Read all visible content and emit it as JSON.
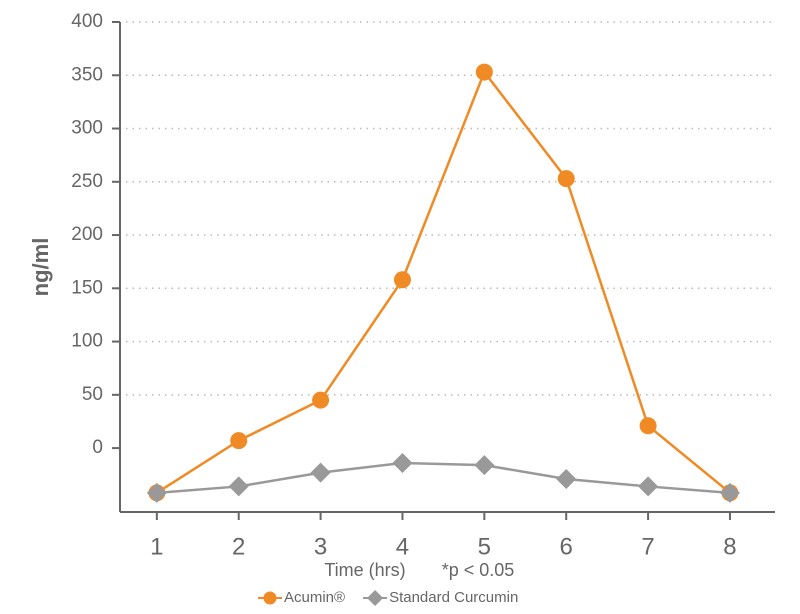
{
  "chart_data": {
    "type": "line",
    "x_label": "Time (hrs)",
    "y_label": "ng/ml",
    "annotation": "*p < 0.05",
    "x": [
      1,
      2,
      3,
      4,
      5,
      6,
      7,
      8
    ],
    "xlim": [
      0.55,
      8.55
    ],
    "xticks": [
      1,
      2,
      3,
      4,
      5,
      6,
      7,
      8
    ],
    "ylim": [
      -60,
      400
    ],
    "yticks": [
      0,
      50,
      100,
      150,
      200,
      250,
      300,
      350,
      400
    ],
    "grid": true,
    "legend": "bottom",
    "series": [
      {
        "name": "Acumin®",
        "color": "#f08a24",
        "marker": "circle",
        "values": [
          -42,
          7,
          45,
          158,
          353,
          253,
          21,
          -42
        ]
      },
      {
        "name": "Standard Curcumin",
        "color": "#999999",
        "marker": "diamond",
        "values": [
          -42,
          -36,
          -23,
          -14,
          -16,
          -29,
          -36,
          -42
        ]
      }
    ]
  }
}
